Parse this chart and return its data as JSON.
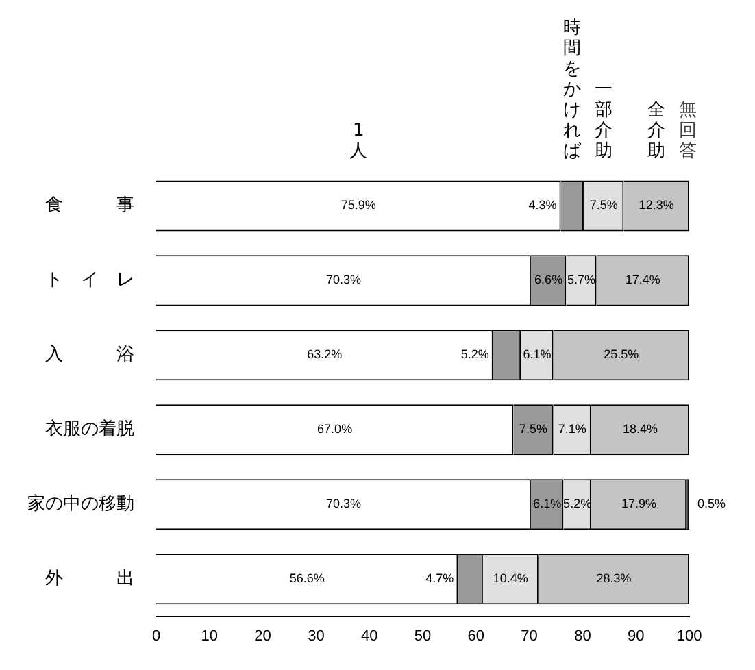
{
  "chart_data": {
    "type": "bar",
    "orientation": "horizontal",
    "stacked": true,
    "legend": "top",
    "grid": false,
    "categories": [
      "食　　　事",
      "ト　イ　レ",
      "入　　　浴",
      "衣服の着脱",
      "家の中の移動",
      "外　　　出"
    ],
    "xlim": [
      0,
      100
    ],
    "xticks": [
      0,
      10,
      20,
      30,
      40,
      50,
      60,
      70,
      80,
      90,
      100
    ],
    "series": [
      {
        "name": "1人",
        "color": "#ffffff",
        "values": [
          75.9,
          70.3,
          63.2,
          67.0,
          70.3,
          56.6
        ],
        "value_labels": [
          "75.9%",
          "70.3%",
          "63.2%",
          "67.0%",
          "70.3%",
          "56.6%"
        ]
      },
      {
        "name": "時間をかければ",
        "color": "#9a9a9a",
        "values": [
          4.3,
          6.6,
          5.2,
          7.5,
          6.1,
          4.7
        ],
        "value_labels": [
          "4.3%",
          "6.6%",
          "5.2%",
          "7.5%",
          "6.1%",
          "4.7%"
        ]
      },
      {
        "name": "一部介助",
        "color": "#e0e0e0",
        "values": [
          7.5,
          5.7,
          6.1,
          7.1,
          5.2,
          10.4
        ],
        "value_labels": [
          "7.5%",
          "5.7%",
          "6.1%",
          "7.1%",
          "5.2%",
          "10.4%"
        ]
      },
      {
        "name": "全介助",
        "color": "#c4c4c4",
        "values": [
          12.3,
          17.4,
          25.5,
          18.4,
          17.9,
          28.3
        ],
        "value_labels": [
          "12.3%",
          "17.4%",
          "25.5%",
          "18.4%",
          "17.9%",
          "28.3%"
        ]
      },
      {
        "name": "無回答",
        "color": "#444444",
        "values": [
          0,
          0,
          0,
          0,
          0.5,
          0
        ],
        "value_labels": [
          null,
          null,
          null,
          null,
          "0.5%",
          null
        ]
      }
    ]
  }
}
